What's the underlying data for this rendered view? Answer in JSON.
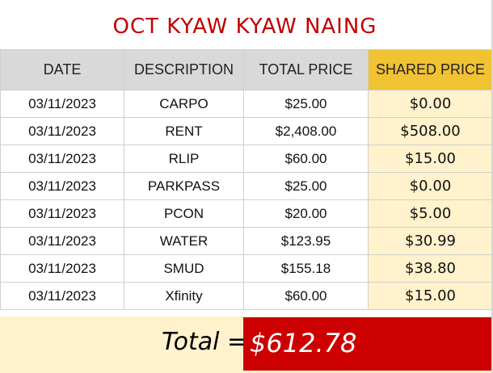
{
  "title": "OCT KYAW KYAW NAING",
  "columns": {
    "date": "DATE",
    "description": "DESCRIPTION",
    "total_price": "TOTAL PRICE",
    "shared_price": "SHARED PRICE"
  },
  "rows": [
    {
      "date": "03/11/2023",
      "description": "CARPO",
      "total_price": "$25.00",
      "shared_price": "$0.00"
    },
    {
      "date": "03/11/2023",
      "description": "RENT",
      "total_price": "$2,408.00",
      "shared_price": "$508.00"
    },
    {
      "date": "03/11/2023",
      "description": "RLIP",
      "total_price": "$60.00",
      "shared_price": "$15.00"
    },
    {
      "date": "03/11/2023",
      "description": "PARKPASS",
      "total_price": "$25.00",
      "shared_price": "$0.00"
    },
    {
      "date": "03/11/2023",
      "description": "PCON",
      "total_price": "$20.00",
      "shared_price": "$5.00"
    },
    {
      "date": "03/11/2023",
      "description": "WATER",
      "total_price": "$123.95",
      "shared_price": "$30.99"
    },
    {
      "date": "03/11/2023",
      "description": "SMUD",
      "total_price": "$155.18",
      "shared_price": "$38.80"
    },
    {
      "date": "03/11/2023",
      "description": "Xfinity",
      "total_price": "$60.00",
      "shared_price": "$15.00"
    }
  ],
  "total": {
    "label": "Total =",
    "value": "$612.78"
  },
  "colors": {
    "title": "#c00000",
    "header_bg": "#d9d9d9",
    "shared_header_bg": "#f1c232",
    "shared_cell_bg": "#fff2cc",
    "total_box_bg": "#cc0000"
  }
}
